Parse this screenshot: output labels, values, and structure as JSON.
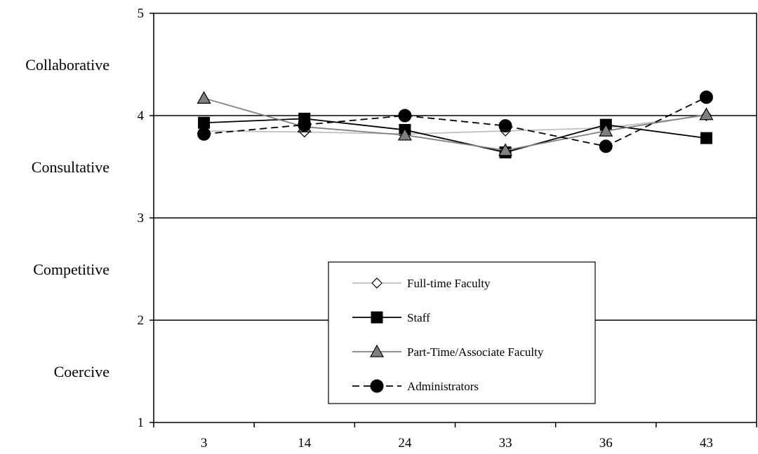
{
  "chart_data": {
    "type": "line",
    "title": "",
    "xlabel": "",
    "ylabel": "",
    "categories": [
      "3",
      "14",
      "24",
      "33",
      "36",
      "43"
    ],
    "ylim": [
      1,
      5
    ],
    "yticks": [
      "1",
      "2",
      "3",
      "4",
      "5"
    ],
    "bands": [
      {
        "label": "Collaborative",
        "y": 4.5
      },
      {
        "label": "Consultative",
        "y": 3.5
      },
      {
        "label": "Competitive",
        "y": 2.5
      },
      {
        "label": "Coercive",
        "y": 1.5
      }
    ],
    "gridlines": [
      2,
      3,
      4
    ],
    "legend_position": "center",
    "series": [
      {
        "name": "Full-time Faculty",
        "values": [
          3.85,
          3.84,
          3.82,
          3.85,
          3.88,
          4.0
        ],
        "color": "#c0c0c0",
        "marker": "diamond",
        "dash": "solid",
        "marker_fill": "#ffffff"
      },
      {
        "name": "Staff",
        "values": [
          3.93,
          3.97,
          3.86,
          3.64,
          3.91,
          3.78
        ],
        "color": "#000000",
        "marker": "square",
        "dash": "solid",
        "marker_fill": "#000000"
      },
      {
        "name": "Part-Time/Associate Faculty",
        "values": [
          4.17,
          3.89,
          3.81,
          3.66,
          3.85,
          4.01
        ],
        "color": "#808080",
        "marker": "triangle",
        "dash": "solid",
        "marker_fill": "#808080"
      },
      {
        "name": "Administrators",
        "values": [
          3.82,
          3.91,
          4.0,
          3.9,
          3.7,
          4.18
        ],
        "color": "#000000",
        "marker": "circle",
        "dash": "dashed",
        "marker_fill": "#000000"
      }
    ]
  }
}
